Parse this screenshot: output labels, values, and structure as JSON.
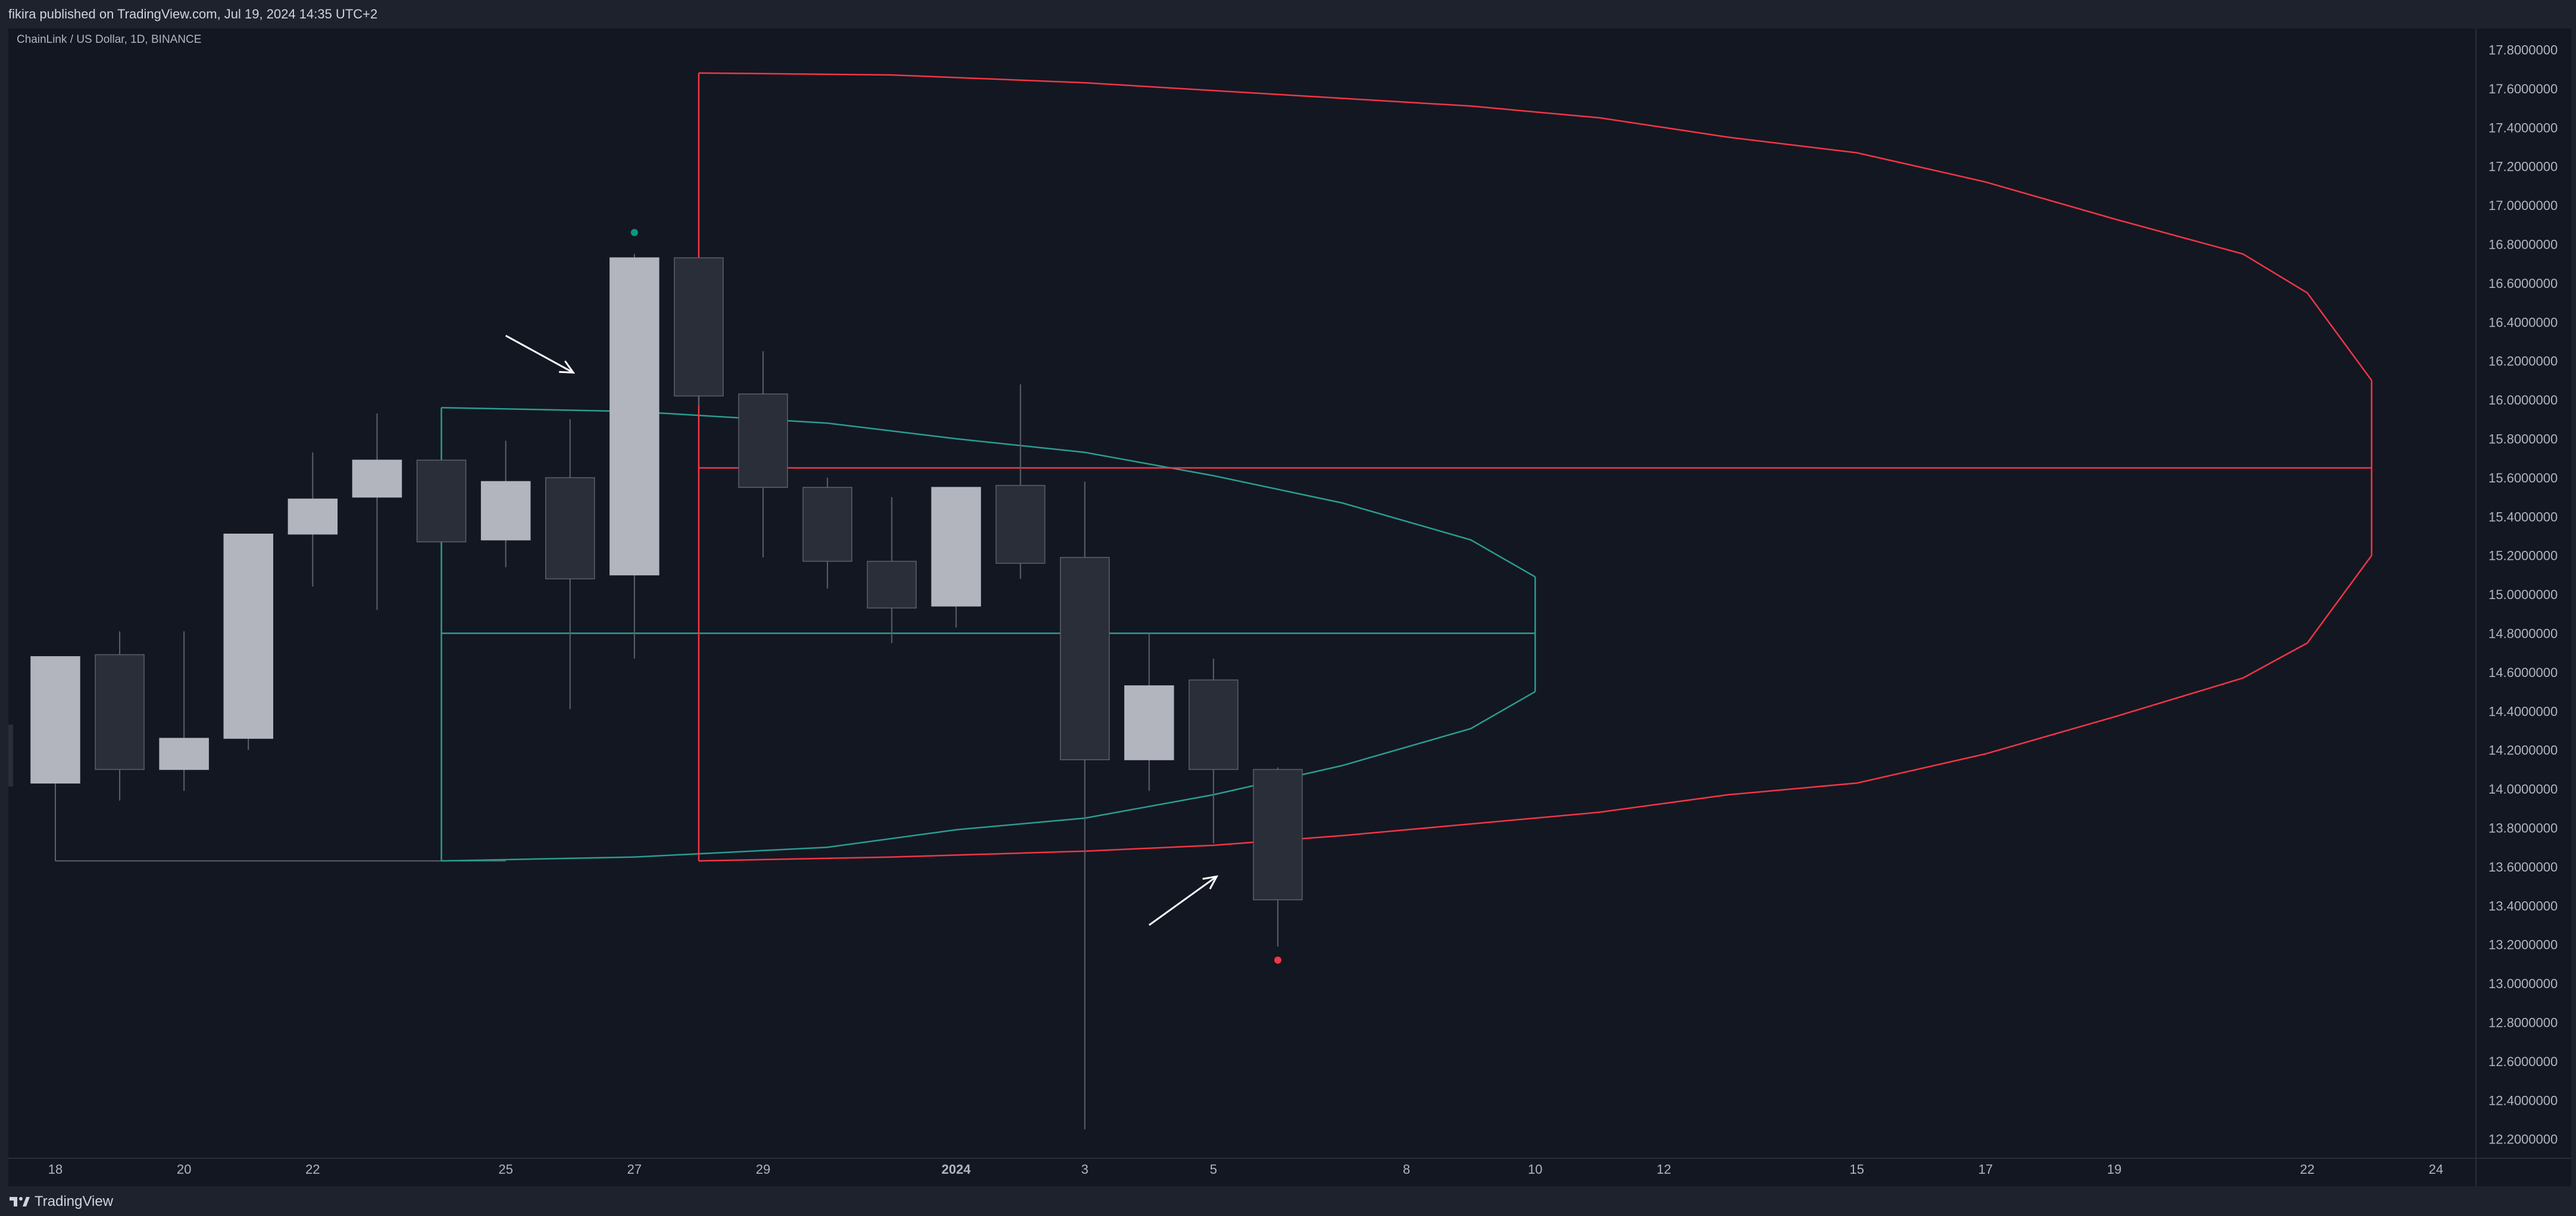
{
  "header": {
    "published_text": "fikira published on TradingView.com, Jul 19, 2024 14:35 UTC+2"
  },
  "chart_title": "ChainLink / US Dollar, 1D, BINANCE",
  "footer": {
    "brand": "TradingView"
  },
  "colors": {
    "background": "#131722",
    "bull_candle": "#b2b5be",
    "bear_candle": "#2a2e39",
    "wick": "#5d606b",
    "red_projection": "#f23645",
    "teal_projection": "#2a9d8f",
    "top_marker": "#089981",
    "bottom_marker": "#f23645",
    "arrow": "#ffffff"
  },
  "chart_data": {
    "type": "candlestick",
    "symbol": "ChainLink / US Dollar",
    "interval": "1D",
    "exchange": "BINANCE",
    "ylim": [
      12.0,
      17.9
    ],
    "y_ticks": [
      "17.8000000",
      "17.6000000",
      "17.4000000",
      "17.2000000",
      "17.0000000",
      "16.8000000",
      "16.6000000",
      "16.4000000",
      "16.2000000",
      "16.0000000",
      "15.8000000",
      "15.6000000",
      "15.4000000",
      "15.2000000",
      "15.0000000",
      "14.8000000",
      "14.6000000",
      "14.4000000",
      "14.2000000",
      "14.0000000",
      "13.8000000",
      "13.6000000",
      "13.4000000",
      "13.2000000",
      "13.0000000",
      "12.8000000",
      "12.6000000",
      "12.4000000",
      "12.2000000"
    ],
    "x_ticks": [
      {
        "label": "18",
        "bar": 0
      },
      {
        "label": "20",
        "bar": 2
      },
      {
        "label": "22",
        "bar": 4
      },
      {
        "label": "25",
        "bar": 7
      },
      {
        "label": "27",
        "bar": 9
      },
      {
        "label": "29",
        "bar": 11
      },
      {
        "label": "2024",
        "bar": 14,
        "bold": true
      },
      {
        "label": "3",
        "bar": 16
      },
      {
        "label": "5",
        "bar": 18
      },
      {
        "label": "8",
        "bar": 21
      },
      {
        "label": "10",
        "bar": 23
      },
      {
        "label": "12",
        "bar": 25
      },
      {
        "label": "15",
        "bar": 28
      },
      {
        "label": "17",
        "bar": 30
      },
      {
        "label": "19",
        "bar": 32
      },
      {
        "label": "22",
        "bar": 35
      },
      {
        "label": "24",
        "bar": 37
      }
    ],
    "candles": [
      {
        "date": "2023-12-18",
        "o": 14.03,
        "h": 14.68,
        "l": 13.63,
        "c": 14.68
      },
      {
        "date": "2023-12-19",
        "o": 14.69,
        "h": 14.81,
        "l": 13.94,
        "c": 14.1
      },
      {
        "date": "2023-12-20",
        "o": 14.1,
        "h": 14.81,
        "l": 13.99,
        "c": 14.26
      },
      {
        "date": "2023-12-21",
        "o": 14.26,
        "h": 15.31,
        "l": 14.2,
        "c": 15.31
      },
      {
        "date": "2023-12-22",
        "o": 15.31,
        "h": 15.73,
        "l": 15.04,
        "c": 15.49
      },
      {
        "date": "2023-12-23",
        "o": 15.5,
        "h": 15.93,
        "l": 14.92,
        "c": 15.69
      },
      {
        "date": "2023-12-24",
        "o": 15.69,
        "h": 15.69,
        "l": 15.27,
        "c": 15.27
      },
      {
        "date": "2023-12-25",
        "o": 15.28,
        "h": 15.79,
        "l": 15.14,
        "c": 15.58
      },
      {
        "date": "2023-12-26",
        "o": 15.6,
        "h": 15.9,
        "l": 14.41,
        "c": 15.08
      },
      {
        "date": "2023-12-27",
        "o": 15.1,
        "h": 16.75,
        "l": 14.67,
        "c": 16.73
      },
      {
        "date": "2023-12-28",
        "o": 16.73,
        "h": 16.73,
        "l": 15.97,
        "c": 16.02
      },
      {
        "date": "2023-12-29",
        "o": 16.03,
        "h": 16.25,
        "l": 15.19,
        "c": 15.55
      },
      {
        "date": "2023-12-30",
        "o": 15.55,
        "h": 15.6,
        "l": 15.03,
        "c": 15.17
      },
      {
        "date": "2023-12-31",
        "o": 15.17,
        "h": 15.5,
        "l": 14.75,
        "c": 14.93
      },
      {
        "date": "2024-01-01",
        "o": 14.94,
        "h": 15.55,
        "l": 14.83,
        "c": 15.55
      },
      {
        "date": "2024-01-02",
        "o": 15.56,
        "h": 16.08,
        "l": 15.08,
        "c": 15.16
      },
      {
        "date": "2024-01-03",
        "o": 15.19,
        "h": 15.58,
        "l": 12.25,
        "c": 14.15
      },
      {
        "date": "2024-01-04",
        "o": 14.15,
        "h": 14.8,
        "l": 13.99,
        "c": 14.53
      },
      {
        "date": "2024-01-05",
        "o": 14.56,
        "h": 14.67,
        "l": 13.72,
        "c": 14.1
      },
      {
        "date": "2024-01-06",
        "o": 14.1,
        "h": 14.11,
        "l": 13.19,
        "c": 13.43
      }
    ],
    "markers": [
      {
        "type": "swing-high-dot",
        "bar": 9,
        "price": 16.86,
        "color": "#089981"
      },
      {
        "type": "swing-low-dot",
        "bar": 19,
        "price": 13.12,
        "color": "#f23645"
      }
    ],
    "annotations": [
      {
        "type": "arrow",
        "direction": "down-right",
        "points_to_bar": 9,
        "from": [
          7.0,
          16.33
        ],
        "to": [
          8.05,
          16.14
        ]
      },
      {
        "type": "arrow",
        "direction": "up-right",
        "points_to_bar": 19,
        "from": [
          17.0,
          13.3
        ],
        "to": [
          18.05,
          13.55
        ]
      }
    ],
    "lines": [
      {
        "type": "hline",
        "from_bar": 0,
        "to_bar": 7,
        "price": 13.63,
        "color": "#5d606b"
      }
    ],
    "projections": [
      {
        "name": "teal-range",
        "color": "#2a9d8f",
        "anchor_bar": 6,
        "start_top": 15.96,
        "start_bottom": 13.63,
        "mid": 14.8,
        "end_bar": 23,
        "upper": [
          [
            6,
            15.96
          ],
          [
            9,
            15.94
          ],
          [
            12,
            15.88
          ],
          [
            14,
            15.8
          ],
          [
            16,
            15.73
          ],
          [
            18,
            15.61
          ],
          [
            20,
            15.47
          ],
          [
            22,
            15.28
          ],
          [
            23,
            15.09
          ]
        ],
        "lower": [
          [
            6,
            13.63
          ],
          [
            9,
            13.65
          ],
          [
            12,
            13.7
          ],
          [
            14,
            13.79
          ],
          [
            16,
            13.85
          ],
          [
            18,
            13.97
          ],
          [
            20,
            14.12
          ],
          [
            22,
            14.31
          ],
          [
            23,
            14.5
          ]
        ]
      },
      {
        "name": "red-range",
        "color": "#f23645",
        "anchor_bar": 10,
        "start_top": 17.68,
        "start_bottom": 13.63,
        "mid": 15.65,
        "end_bar": 36,
        "upper": [
          [
            10,
            17.68
          ],
          [
            13,
            17.67
          ],
          [
            16,
            17.63
          ],
          [
            18,
            17.59
          ],
          [
            20,
            17.55
          ],
          [
            22,
            17.51
          ],
          [
            24,
            17.45
          ],
          [
            26,
            17.35
          ],
          [
            28,
            17.27
          ],
          [
            30,
            17.12
          ],
          [
            32,
            16.93
          ],
          [
            34,
            16.75
          ],
          [
            35,
            16.55
          ],
          [
            36,
            16.1
          ]
        ],
        "lower": [
          [
            10,
            13.63
          ],
          [
            13,
            13.65
          ],
          [
            16,
            13.68
          ],
          [
            18,
            13.71
          ],
          [
            20,
            13.76
          ],
          [
            22,
            13.82
          ],
          [
            24,
            13.88
          ],
          [
            26,
            13.97
          ],
          [
            28,
            14.03
          ],
          [
            30,
            14.18
          ],
          [
            32,
            14.37
          ],
          [
            34,
            14.57
          ],
          [
            35,
            14.75
          ],
          [
            36,
            15.2
          ]
        ]
      }
    ]
  }
}
